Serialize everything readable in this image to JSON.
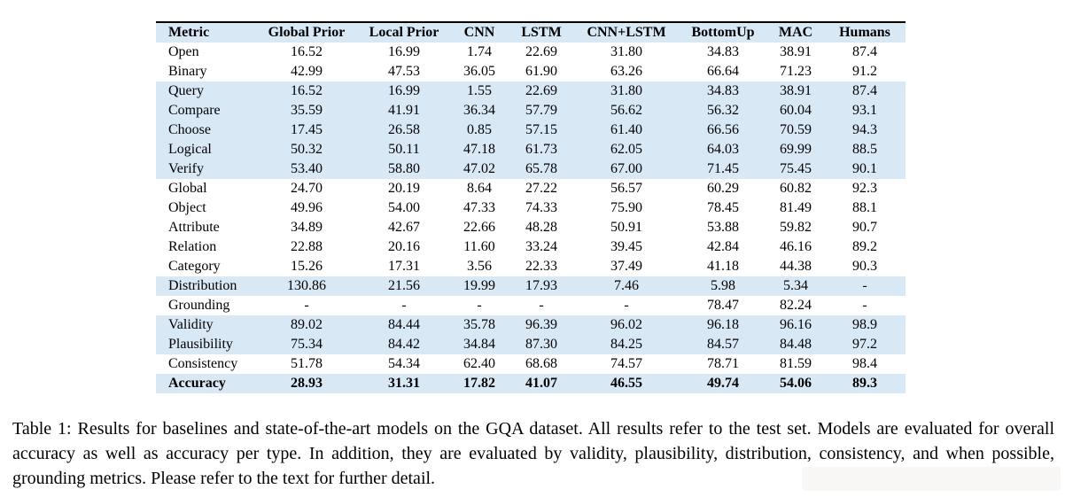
{
  "colors": {
    "row_shade": "#d9e8f5",
    "top_rule": "#000000",
    "page_background": "#ffffff",
    "watermark_smudge": "#f4f2ee"
  },
  "table": {
    "columns": [
      "Metric",
      "Global Prior",
      "Local Prior",
      "CNN",
      "LSTM",
      "CNN+LSTM",
      "BottomUp",
      "MAC",
      "Humans"
    ],
    "rows": [
      {
        "cells": [
          "Open",
          "16.52",
          "16.99",
          "1.74",
          "22.69",
          "31.80",
          "34.83",
          "38.91",
          "87.4"
        ],
        "shaded": false,
        "bold": false
      },
      {
        "cells": [
          "Binary",
          "42.99",
          "47.53",
          "36.05",
          "61.90",
          "63.26",
          "66.64",
          "71.23",
          "91.2"
        ],
        "shaded": false,
        "bold": false
      },
      {
        "cells": [
          "Query",
          "16.52",
          "16.99",
          "1.55",
          "22.69",
          "31.80",
          "34.83",
          "38.91",
          "87.4"
        ],
        "shaded": true,
        "bold": false
      },
      {
        "cells": [
          "Compare",
          "35.59",
          "41.91",
          "36.34",
          "57.79",
          "56.62",
          "56.32",
          "60.04",
          "93.1"
        ],
        "shaded": true,
        "bold": false
      },
      {
        "cells": [
          "Choose",
          "17.45",
          "26.58",
          "0.85",
          "57.15",
          "61.40",
          "66.56",
          "70.59",
          "94.3"
        ],
        "shaded": true,
        "bold": false
      },
      {
        "cells": [
          "Logical",
          "50.32",
          "50.11",
          "47.18",
          "61.73",
          "62.05",
          "64.03",
          "69.99",
          "88.5"
        ],
        "shaded": true,
        "bold": false
      },
      {
        "cells": [
          "Verify",
          "53.40",
          "58.80",
          "47.02",
          "65.78",
          "67.00",
          "71.45",
          "75.45",
          "90.1"
        ],
        "shaded": true,
        "bold": false
      },
      {
        "cells": [
          "Global",
          "24.70",
          "20.19",
          "8.64",
          "27.22",
          "56.57",
          "60.29",
          "60.82",
          "92.3"
        ],
        "shaded": false,
        "bold": false
      },
      {
        "cells": [
          "Object",
          "49.96",
          "54.00",
          "47.33",
          "74.33",
          "75.90",
          "78.45",
          "81.49",
          "88.1"
        ],
        "shaded": false,
        "bold": false
      },
      {
        "cells": [
          "Attribute",
          "34.89",
          "42.67",
          "22.66",
          "48.28",
          "50.91",
          "53.88",
          "59.82",
          "90.7"
        ],
        "shaded": false,
        "bold": false
      },
      {
        "cells": [
          "Relation",
          "22.88",
          "20.16",
          "11.60",
          "33.24",
          "39.45",
          "42.84",
          "46.16",
          "89.2"
        ],
        "shaded": false,
        "bold": false
      },
      {
        "cells": [
          "Category",
          "15.26",
          "17.31",
          "3.56",
          "22.33",
          "37.49",
          "41.18",
          "44.38",
          "90.3"
        ],
        "shaded": false,
        "bold": false
      },
      {
        "cells": [
          "Distribution",
          "130.86",
          "21.56",
          "19.99",
          "17.93",
          "7.46",
          "5.98",
          "5.34",
          "-"
        ],
        "shaded": true,
        "bold": false
      },
      {
        "cells": [
          "Grounding",
          "-",
          "-",
          "-",
          "-",
          "-",
          "78.47",
          "82.24",
          "-"
        ],
        "shaded": false,
        "bold": false
      },
      {
        "cells": [
          "Validity",
          "89.02",
          "84.44",
          "35.78",
          "96.39",
          "96.02",
          "96.18",
          "96.16",
          "98.9"
        ],
        "shaded": true,
        "bold": false
      },
      {
        "cells": [
          "Plausibility",
          "75.34",
          "84.42",
          "34.84",
          "87.30",
          "84.25",
          "84.57",
          "84.48",
          "97.2"
        ],
        "shaded": true,
        "bold": false
      },
      {
        "cells": [
          "Consistency",
          "51.78",
          "54.34",
          "62.40",
          "68.68",
          "74.57",
          "78.71",
          "81.59",
          "98.4"
        ],
        "shaded": false,
        "bold": false
      },
      {
        "cells": [
          "Accuracy",
          "28.93",
          "31.31",
          "17.82",
          "41.07",
          "46.55",
          "49.74",
          "54.06",
          "89.3"
        ],
        "shaded": true,
        "bold": true
      }
    ]
  },
  "caption": "Table 1: Results for baselines and state-of-the-art models on the GQA dataset.  All results refer to the test set.  Models are evaluated for overall accuracy as well as accuracy per type.  In addition, they are evaluated by validity, plausibility, distribution, consistency, and when possible, grounding metrics.  Please refer to the text for further detail."
}
